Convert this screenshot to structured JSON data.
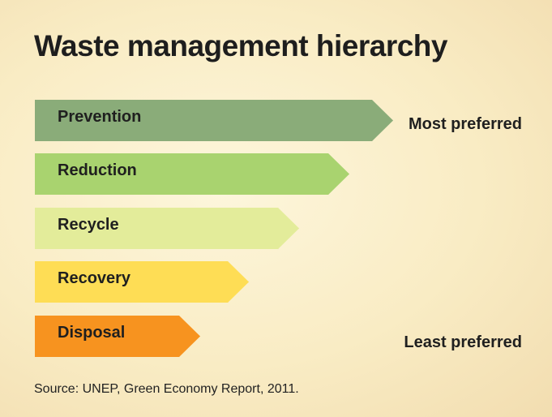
{
  "title": "Waste management hierarchy",
  "tiers": [
    {
      "label": "Prevention",
      "color": "#8aac79"
    },
    {
      "label": "Reduction",
      "color": "#a9d36f"
    },
    {
      "label": "Recycle",
      "color": "#e3ec9a"
    },
    {
      "label": "Recovery",
      "color": "#fedd55"
    },
    {
      "label": "Disposal",
      "color": "#f7931f"
    }
  ],
  "preference": {
    "top": "Most preferred",
    "bottom": "Least preferred"
  },
  "source": "Source: UNEP, Green Economy Report, 2011."
}
